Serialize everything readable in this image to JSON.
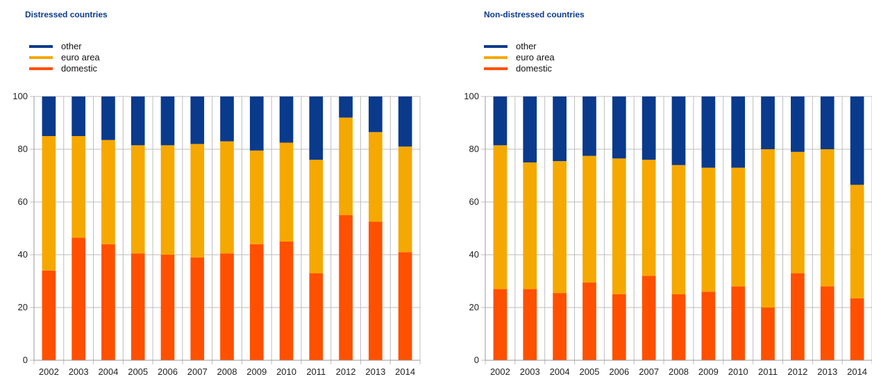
{
  "colors": {
    "other": "#0a3a8c",
    "euro_area": "#f5a800",
    "domestic": "#ff5000"
  },
  "chart_data": [
    {
      "type": "bar",
      "stacked": true,
      "title": "Distressed countries",
      "categories": [
        "2002",
        "2003",
        "2004",
        "2005",
        "2006",
        "2007",
        "2008",
        "2009",
        "2010",
        "2011",
        "2012",
        "2013",
        "2014"
      ],
      "ylim": [
        0,
        100
      ],
      "yticks": [
        0,
        20,
        40,
        60,
        80,
        100
      ],
      "grid": true,
      "legend_position": "top-left",
      "series": [
        {
          "name": "domestic",
          "values": [
            34,
            46.5,
            44,
            40.5,
            40,
            39,
            40.5,
            44,
            45,
            33,
            55,
            52.5,
            41
          ]
        },
        {
          "name": "euro area",
          "values": [
            51,
            38.5,
            39.5,
            41,
            41.5,
            43,
            42.5,
            35.5,
            37.5,
            43,
            37,
            34,
            40
          ]
        },
        {
          "name": "other",
          "values": [
            15,
            15,
            16.5,
            18.5,
            18.5,
            18,
            17,
            20.5,
            17.5,
            24,
            8,
            13.5,
            19
          ]
        }
      ],
      "legend": [
        {
          "key": "other",
          "label": "other"
        },
        {
          "key": "euro_area",
          "label": "euro area"
        },
        {
          "key": "domestic",
          "label": "domestic"
        }
      ]
    },
    {
      "type": "bar",
      "stacked": true,
      "title": "Non-distressed countries",
      "categories": [
        "2002",
        "2003",
        "2004",
        "2005",
        "2006",
        "2007",
        "2008",
        "2009",
        "2010",
        "2011",
        "2012",
        "2013",
        "2014"
      ],
      "ylim": [
        0,
        100
      ],
      "yticks": [
        0,
        20,
        40,
        60,
        80,
        100
      ],
      "grid": true,
      "legend_position": "top-left",
      "series": [
        {
          "name": "domestic",
          "values": [
            27,
            27,
            25.5,
            29.5,
            25,
            32,
            25,
            26,
            28,
            20,
            33,
            28,
            23.5
          ]
        },
        {
          "name": "euro area",
          "values": [
            54.5,
            48,
            50,
            48,
            51.5,
            44,
            49,
            47,
            45,
            60,
            46,
            52,
            43
          ]
        },
        {
          "name": "other",
          "values": [
            18.5,
            25,
            24.5,
            22.5,
            23.5,
            24,
            26,
            27,
            27,
            20,
            21,
            20,
            33.5
          ]
        }
      ],
      "legend": [
        {
          "key": "other",
          "label": "other"
        },
        {
          "key": "euro_area",
          "label": "euro area"
        },
        {
          "key": "domestic",
          "label": "domestic"
        }
      ]
    }
  ]
}
